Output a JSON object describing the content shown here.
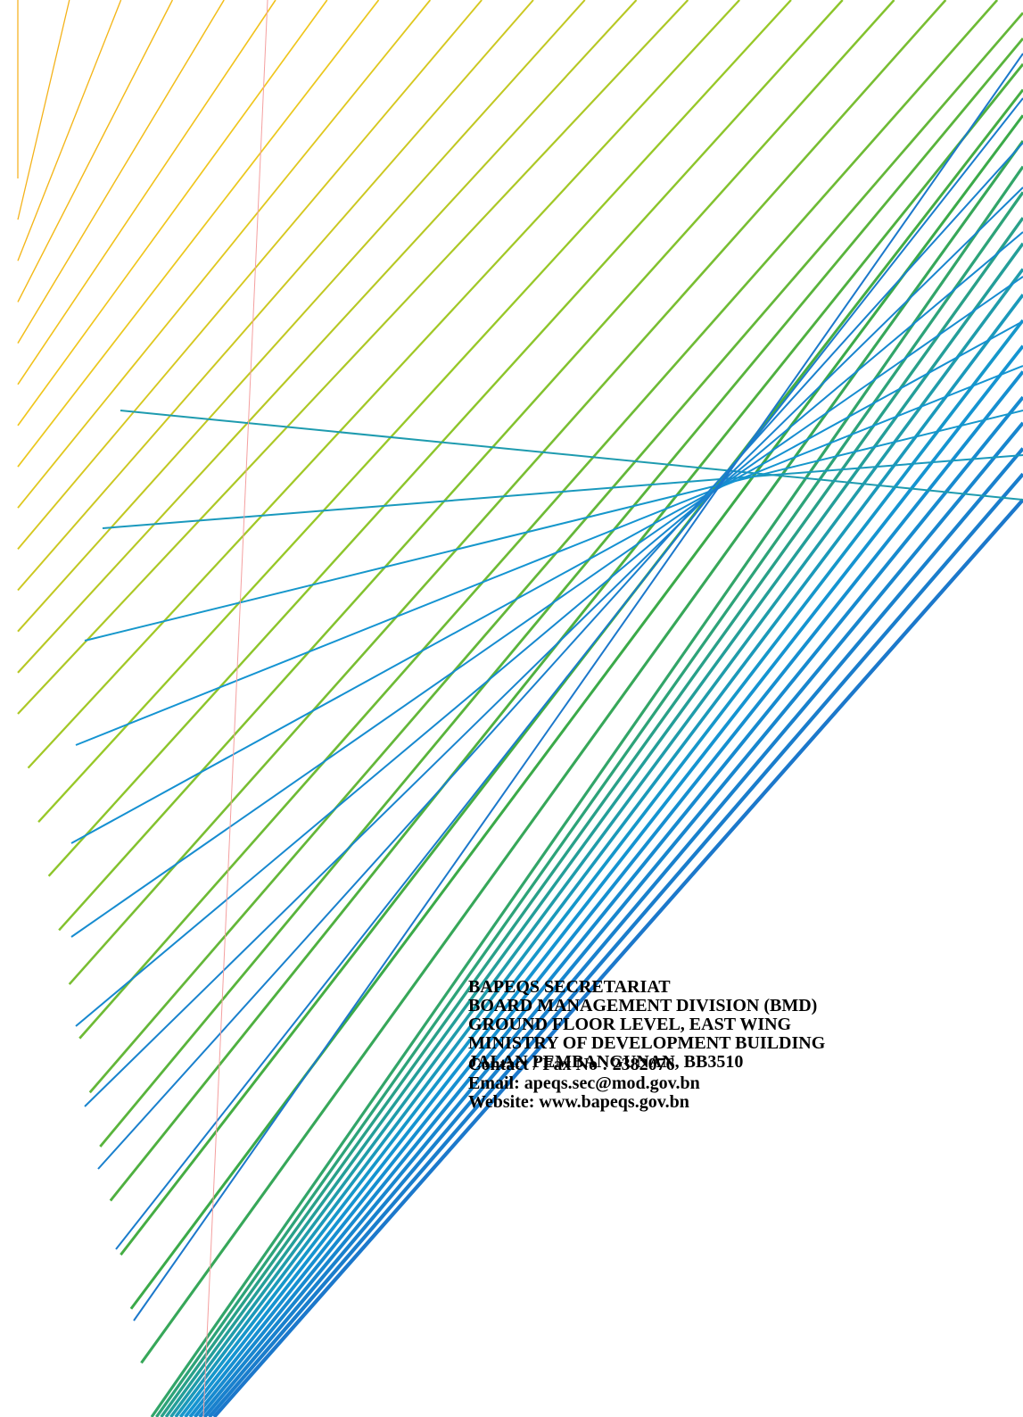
{
  "address": {
    "lines": [
      "BAPEQS SECRETARIAT",
      "BOARD MANAGEMENT DIVISION (BMD)",
      "GROUND FLOOR LEVEL, EAST WING",
      "MINISTRY OF DEVELOPMENT BUILDING",
      "JALAN PEMBANGUNAN, BB3510"
    ]
  },
  "contact": {
    "lines": [
      "Contact / Fax No : 2382076",
      "Email: apeqs.sec@mod.gov.bn",
      "Website: www.bapeqs.gov.bn"
    ]
  }
}
